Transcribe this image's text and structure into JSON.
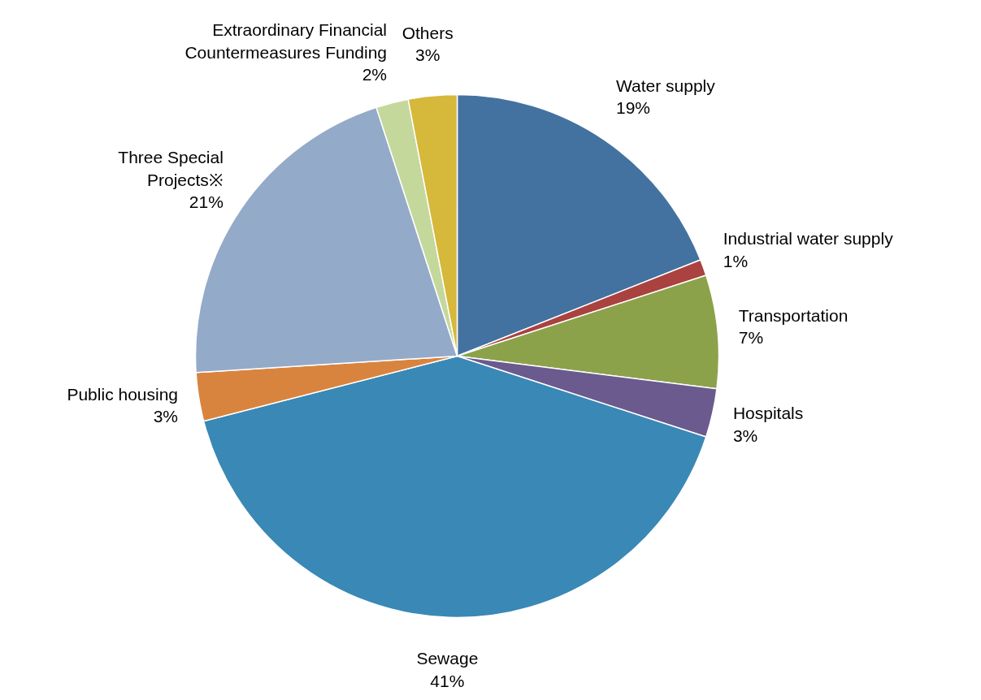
{
  "chart_data": {
    "type": "pie",
    "categories": [
      "Water supply",
      "Industrial water supply",
      "Transportation",
      "Hospitals",
      "Sewage",
      "Public housing",
      "Three Special Projects※",
      "Extraordinary Financial Countermeasures Funding",
      "Others"
    ],
    "values": [
      19,
      1,
      7,
      3,
      41,
      3,
      21,
      2,
      3
    ],
    "colors": [
      "#4472a0",
      "#aa4240",
      "#8ba24a",
      "#6b5a8e",
      "#3a88b5",
      "#d9843e",
      "#94aac9",
      "#c4d89c",
      "#d6b83a"
    ],
    "value_labels": [
      "19%",
      "1%",
      "7%",
      "3%",
      "41%",
      "3%",
      "21%",
      "2%",
      "3%"
    ]
  }
}
